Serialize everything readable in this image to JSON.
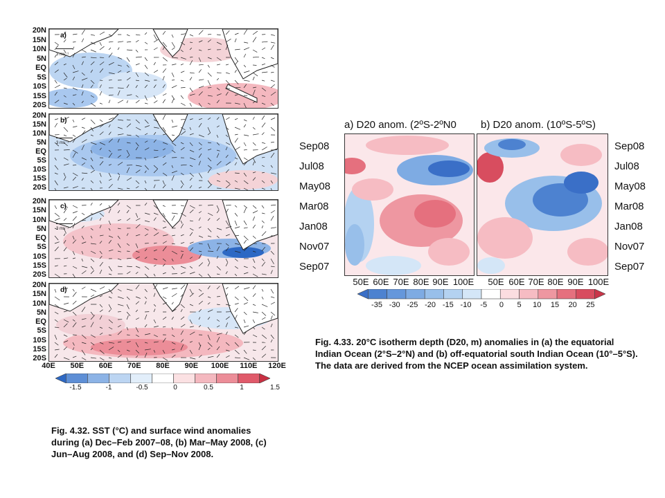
{
  "fig432": {
    "panel_labels": [
      "a)",
      "b)",
      "c)",
      "d)"
    ],
    "ref_vector_label": "3 ms⁻¹",
    "lat_ticks": [
      "20N",
      "15N",
      "10N",
      "5N",
      "EQ",
      "5S",
      "10S",
      "15S",
      "20S"
    ],
    "lon_ticks": [
      "40E",
      "50E",
      "60E",
      "70E",
      "80E",
      "90E",
      "100E",
      "110E",
      "120E"
    ],
    "colorbar": {
      "labels": [
        "-1.5",
        "-1",
        "-0.5",
        "0",
        "0.5",
        "1",
        "1.5"
      ],
      "colors": [
        "#2d68c4",
        "#5e8fd6",
        "#8cb3e6",
        "#bcd5f2",
        "#e2eefa",
        "#ffffff",
        "#fbe1e3",
        "#f4b8bf",
        "#ec8d98",
        "#e05a6a",
        "#c82f42"
      ]
    },
    "caption": "Fig. 4.32. SST (°C) and surface wind anomalies during (a) Dec–Feb 2007–08, (b) Mar–May 2008, (c) Jun–Aug 2008, and (d) Sep–Nov 2008."
  },
  "fig433": {
    "panel_a_title": "a)  D20 anom. (2ºS-2ºN0",
    "panel_b_title": "b) D20 anom. (10ºS-5ºS)",
    "left_ticks": [
      "Sep08",
      "Jul08",
      "May08",
      "Mar08",
      "Jan08",
      "Nov07",
      "Sep07"
    ],
    "right_ticks": [
      "Sep08",
      "Jul08",
      "May08",
      "Mar08",
      "Jan08",
      "Nov07",
      "Sep07"
    ],
    "x_ticks_a": [
      "50E",
      "60E",
      "70E",
      "80E",
      "90E",
      "100E"
    ],
    "x_ticks_b": [
      "50E",
      "60E",
      "70E",
      "80E",
      "90E",
      "100E"
    ],
    "colorbar": {
      "labels": [
        "-35",
        "-30",
        "-25",
        "-20",
        "-15",
        "-10",
        "-5",
        "0",
        "5",
        "10",
        "15",
        "20",
        "25"
      ],
      "colors": [
        "#3a6fc7",
        "#4d82d0",
        "#6597db",
        "#7eabe3",
        "#98bfea",
        "#b4d2f1",
        "#d4e6f7",
        "#ffffff",
        "#fbdde0",
        "#f6bcc3",
        "#ee97a1",
        "#e5707e",
        "#d84d5f",
        "#c93549"
      ]
    },
    "caption": "Fig. 4.33. 20°C isotherm depth (D20, m) anomalies in (a) the equatorial Indian Ocean (2°S–2°N) and (b) off-equatorial south Indian Ocean (10°–5°S). The data are derived from the NCEP ocean assimilation system."
  }
}
